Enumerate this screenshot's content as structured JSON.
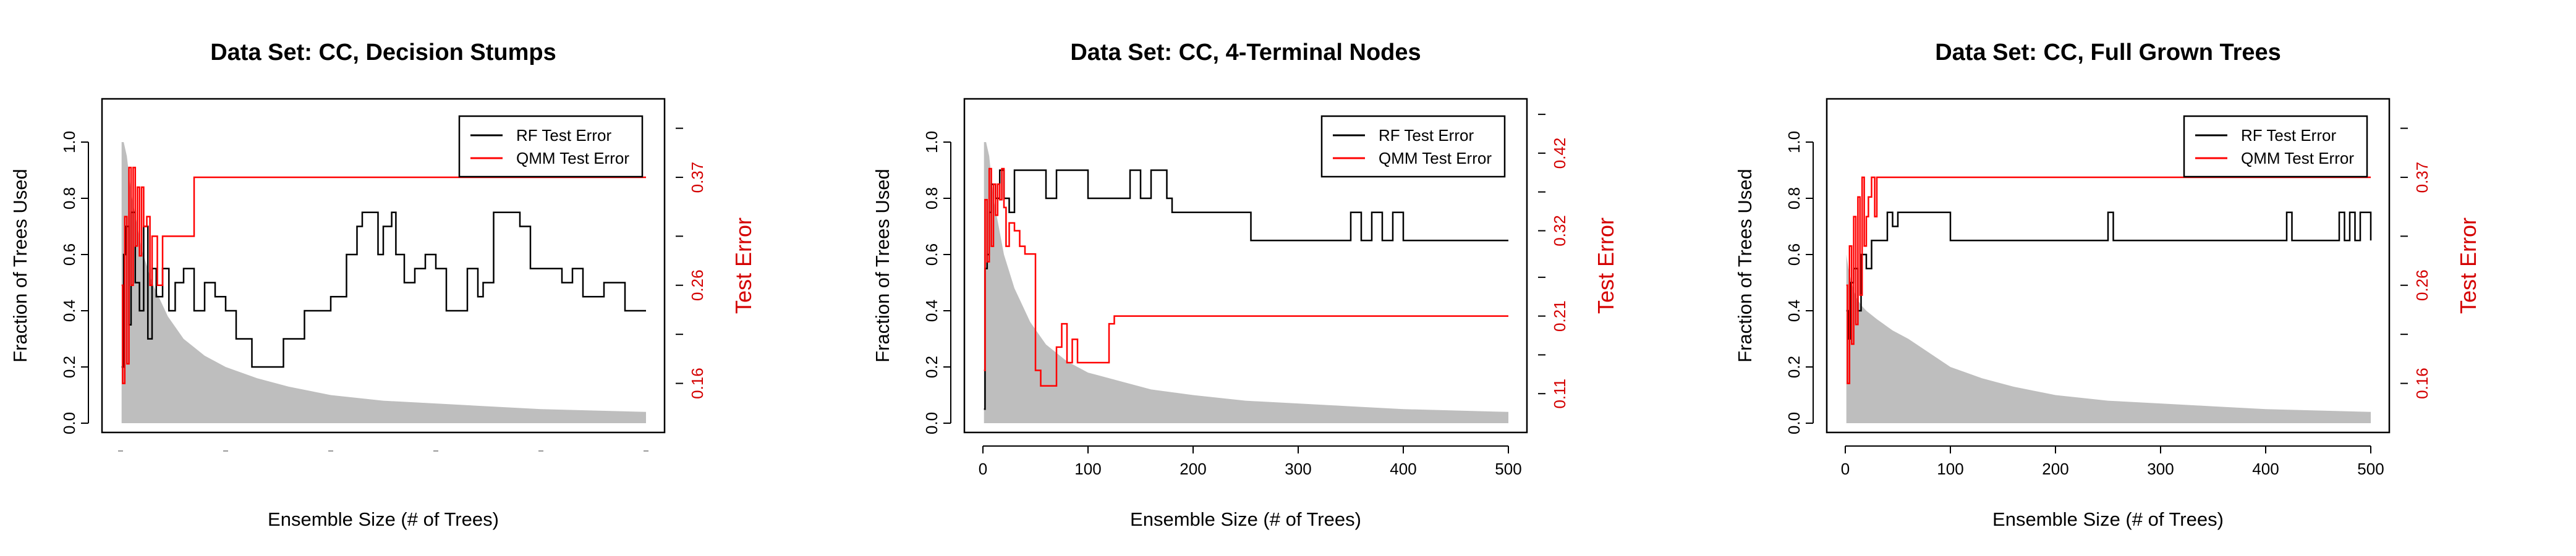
{
  "chart_data": [
    {
      "type": "line",
      "title": "Data Set: CC, Decision Stumps",
      "xlabel": "Ensemble Size (# of Trees)",
      "ylabel": "Fraction of Trees Used",
      "ylabel_right": "Test Error",
      "x_ticks": [],
      "y_ticks": [
        "0.0",
        "0.2",
        "0.4",
        "0.6",
        "0.8",
        "1.0"
      ],
      "right_ticks": [
        "0.16",
        "0.26",
        "0.37"
      ],
      "right_tick_values": [
        0.16,
        0.26,
        0.37
      ],
      "xlim": [
        0,
        500
      ],
      "ylim": [
        0,
        1.1
      ],
      "right_ylim": [
        0.11,
        0.45
      ],
      "legend": [
        "RF Test Error",
        "QMM Test Error"
      ],
      "legend_position": "top-right",
      "colors": {
        "rf": "#000000",
        "qmm": "#ff0000",
        "band": "#bebebe",
        "right_axis": "#d40000"
      },
      "band_upper": {
        "x": [
          1,
          3,
          6,
          10,
          15,
          20,
          30,
          45,
          60,
          80,
          100,
          130,
          160,
          200,
          250,
          300,
          350,
          400,
          450,
          500
        ],
        "y": [
          1.0,
          1.0,
          0.95,
          0.82,
          0.72,
          0.62,
          0.5,
          0.38,
          0.3,
          0.24,
          0.2,
          0.16,
          0.13,
          0.1,
          0.08,
          0.07,
          0.06,
          0.05,
          0.045,
          0.04
        ]
      },
      "band_lower": 0,
      "series": [
        {
          "name": "RF Test Error",
          "x": [
            1,
            3,
            5,
            8,
            10,
            14,
            18,
            22,
            26,
            30,
            34,
            40,
            46,
            52,
            60,
            70,
            80,
            90,
            100,
            110,
            125,
            140,
            155,
            175,
            200,
            215,
            225,
            230,
            240,
            245,
            250,
            258,
            262,
            270,
            280,
            290,
            300,
            310,
            330,
            340,
            345,
            355,
            365,
            380,
            390,
            400,
            410,
            420,
            430,
            440,
            460,
            480,
            500
          ],
          "y": [
            0.2,
            0.6,
            0.7,
            0.35,
            0.75,
            0.5,
            0.4,
            0.7,
            0.3,
            0.55,
            0.45,
            0.55,
            0.4,
            0.5,
            0.55,
            0.4,
            0.5,
            0.45,
            0.4,
            0.3,
            0.2,
            0.2,
            0.3,
            0.4,
            0.45,
            0.6,
            0.7,
            0.75,
            0.75,
            0.6,
            0.7,
            0.75,
            0.6,
            0.5,
            0.55,
            0.6,
            0.55,
            0.4,
            0.55,
            0.45,
            0.5,
            0.75,
            0.75,
            0.7,
            0.55,
            0.55,
            0.55,
            0.5,
            0.55,
            0.45,
            0.5,
            0.4,
            0.4
          ]
        },
        {
          "name": "QMM Test Error",
          "x": [
            1,
            2,
            4,
            6,
            8,
            10,
            12,
            14,
            16,
            18,
            20,
            22,
            25,
            28,
            30,
            35,
            40,
            45,
            50,
            55,
            60,
            65,
            70,
            500
          ],
          "y": [
            0.26,
            0.16,
            0.33,
            0.18,
            0.38,
            0.26,
            0.38,
            0.3,
            0.36,
            0.29,
            0.36,
            0.32,
            0.33,
            0.26,
            0.31,
            0.26,
            0.31,
            0.31,
            0.31,
            0.31,
            0.31,
            0.31,
            0.37,
            0.37
          ]
        }
      ]
    },
    {
      "type": "line",
      "title": "Data Set: CC, 4-Terminal Nodes",
      "xlabel": "Ensemble Size (# of Trees)",
      "ylabel": "Fraction of Trees Used",
      "ylabel_right": "Test Error",
      "x_ticks": [
        "0",
        "100",
        "200",
        "300",
        "400",
        "500"
      ],
      "x_tick_values": [
        0,
        100,
        200,
        300,
        400,
        500
      ],
      "y_ticks": [
        "0.0",
        "0.2",
        "0.4",
        "0.6",
        "0.8",
        "1.0"
      ],
      "right_ticks": [
        "0.11",
        "0.21",
        "0.32",
        "0.42"
      ],
      "right_tick_values": [
        0.11,
        0.21,
        0.32,
        0.42
      ],
      "xlim": [
        0,
        500
      ],
      "ylim": [
        0,
        1.1
      ],
      "right_ylim": [
        0.06,
        0.49
      ],
      "legend": [
        "RF Test Error",
        "QMM Test Error"
      ],
      "legend_position": "top-right",
      "colors": {
        "rf": "#000000",
        "qmm": "#ff0000",
        "band": "#bebebe",
        "right_axis": "#d40000"
      },
      "band_upper": {
        "x": [
          1,
          3,
          6,
          10,
          15,
          20,
          30,
          45,
          60,
          80,
          100,
          130,
          160,
          200,
          250,
          300,
          350,
          400,
          450,
          500
        ],
        "y": [
          1.0,
          1.0,
          0.95,
          0.8,
          0.7,
          0.6,
          0.48,
          0.36,
          0.28,
          0.22,
          0.18,
          0.15,
          0.12,
          0.1,
          0.08,
          0.07,
          0.06,
          0.05,
          0.045,
          0.04
        ]
      },
      "band_lower": 0,
      "series": [
        {
          "name": "RF Test Error",
          "x": [
            1,
            2,
            4,
            6,
            8,
            12,
            16,
            20,
            25,
            30,
            40,
            50,
            60,
            70,
            80,
            95,
            100,
            120,
            140,
            150,
            160,
            175,
            180,
            200,
            230,
            255,
            260,
            300,
            340,
            350,
            360,
            370,
            380,
            390,
            400,
            500
          ],
          "y": [
            0.05,
            0.55,
            0.6,
            0.75,
            0.85,
            0.8,
            0.9,
            0.8,
            0.75,
            0.9,
            0.9,
            0.9,
            0.8,
            0.9,
            0.9,
            0.9,
            0.8,
            0.8,
            0.9,
            0.8,
            0.9,
            0.8,
            0.75,
            0.75,
            0.75,
            0.65,
            0.65,
            0.65,
            0.65,
            0.75,
            0.65,
            0.75,
            0.65,
            0.75,
            0.65,
            0.65
          ]
        },
        {
          "name": "QMM Test Error",
          "x": [
            1,
            2,
            4,
            6,
            8,
            10,
            12,
            14,
            16,
            18,
            20,
            22,
            25,
            30,
            35,
            40,
            50,
            55,
            65,
            70,
            75,
            80,
            85,
            90,
            100,
            110,
            120,
            125,
            500
          ],
          "y": [
            0.14,
            0.36,
            0.28,
            0.4,
            0.3,
            0.38,
            0.34,
            0.38,
            0.36,
            0.4,
            0.35,
            0.3,
            0.33,
            0.32,
            0.3,
            0.29,
            0.14,
            0.12,
            0.12,
            0.17,
            0.2,
            0.15,
            0.18,
            0.15,
            0.15,
            0.15,
            0.2,
            0.21,
            0.21
          ]
        }
      ]
    },
    {
      "type": "line",
      "title": "Data Set: CC, Full Grown Trees",
      "xlabel": "Ensemble Size (# of Trees)",
      "ylabel": "Fraction of Trees Used",
      "ylabel_right": "Test Error",
      "x_ticks": [
        "0",
        "100",
        "200",
        "300",
        "400",
        "500"
      ],
      "x_tick_values": [
        0,
        100,
        200,
        300,
        400,
        500
      ],
      "y_ticks": [
        "0.0",
        "0.2",
        "0.4",
        "0.6",
        "0.8",
        "1.0"
      ],
      "right_ticks": [
        "0.16",
        "0.26",
        "0.37"
      ],
      "right_tick_values": [
        0.16,
        0.26,
        0.37
      ],
      "xlim": [
        0,
        500
      ],
      "ylim": [
        0,
        1.1
      ],
      "right_ylim": [
        0.11,
        0.45
      ],
      "legend": [
        "RF Test Error",
        "QMM Test Error"
      ],
      "legend_position": "top-right",
      "colors": {
        "rf": "#000000",
        "qmm": "#ff0000",
        "band": "#bebebe",
        "right_axis": "#d40000"
      },
      "band_upper": {
        "x": [
          1,
          3,
          6,
          10,
          15,
          20,
          30,
          45,
          60,
          80,
          100,
          130,
          160,
          200,
          250,
          300,
          350,
          400,
          450,
          500
        ],
        "y": [
          0.6,
          0.55,
          0.5,
          0.45,
          0.42,
          0.4,
          0.37,
          0.33,
          0.3,
          0.25,
          0.2,
          0.16,
          0.13,
          0.1,
          0.08,
          0.07,
          0.06,
          0.05,
          0.045,
          0.04
        ]
      },
      "band_lower": 0,
      "series": [
        {
          "name": "RF Test Error",
          "x": [
            1,
            3,
            5,
            8,
            12,
            15,
            20,
            25,
            30,
            35,
            40,
            45,
            50,
            95,
            100,
            250,
            255,
            420,
            425,
            470,
            475,
            480,
            485,
            490,
            500
          ],
          "y": [
            0.4,
            0.3,
            0.5,
            0.55,
            0.4,
            0.6,
            0.55,
            0.65,
            0.65,
            0.65,
            0.75,
            0.7,
            0.75,
            0.75,
            0.65,
            0.75,
            0.65,
            0.75,
            0.65,
            0.75,
            0.65,
            0.75,
            0.65,
            0.75,
            0.65
          ]
        },
        {
          "name": "QMM Test Error",
          "x": [
            1,
            2,
            4,
            6,
            8,
            10,
            12,
            14,
            16,
            18,
            20,
            22,
            25,
            28,
            30,
            500
          ],
          "y": [
            0.26,
            0.16,
            0.3,
            0.2,
            0.33,
            0.22,
            0.35,
            0.25,
            0.37,
            0.3,
            0.33,
            0.35,
            0.37,
            0.33,
            0.37,
            0.37
          ]
        }
      ]
    }
  ]
}
